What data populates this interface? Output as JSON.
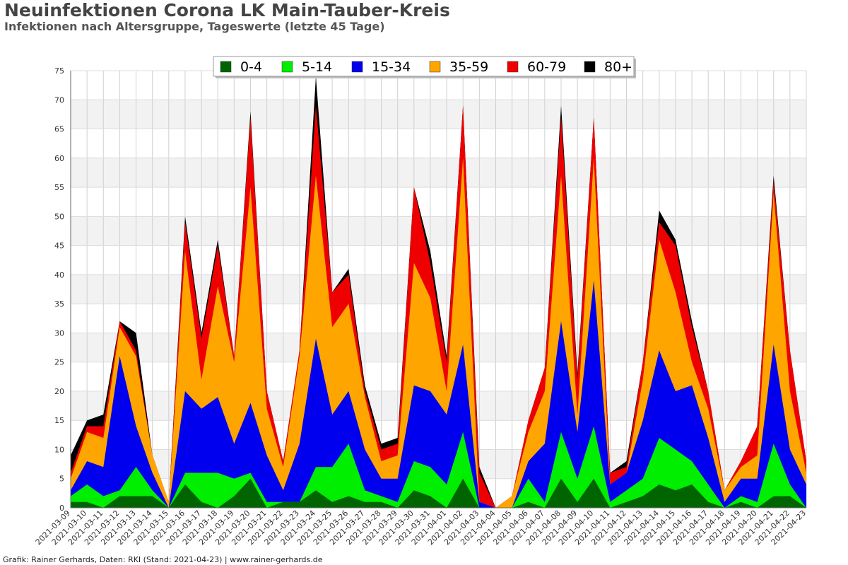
{
  "header": {
    "title": "Neuinfektionen Corona LK Main-Tauber-Kreis",
    "subtitle": "Infektionen nach Altersgruppe, Tageswerte (letzte 45 Tage)"
  },
  "footer": {
    "credit": "Grafik: Rainer Gerhards, Daten: RKI (Stand: 2021-04-23) | www.rainer-gerhards.de"
  },
  "chart_data": {
    "type": "area",
    "stacked": true,
    "title": "Neuinfektionen Corona LK Main-Tauber-Kreis",
    "subtitle": "Infektionen nach Altersgruppe, Tageswerte (letzte 45 Tage)",
    "xlabel": "",
    "ylabel": "",
    "ylim": [
      0,
      75
    ],
    "yticks": [
      0,
      5,
      10,
      15,
      20,
      25,
      30,
      35,
      40,
      45,
      50,
      55,
      60,
      65,
      70,
      75
    ],
    "grid": true,
    "legend_position": "top-center",
    "x": [
      "2021-03-09",
      "2021-03-10",
      "2021-03-11",
      "2021-03-12",
      "2021-03-13",
      "2021-03-14",
      "2021-03-15",
      "2021-03-16",
      "2021-03-17",
      "2021-03-18",
      "2021-03-19",
      "2021-03-20",
      "2021-03-21",
      "2021-03-22",
      "2021-03-23",
      "2021-03-24",
      "2021-03-25",
      "2021-03-26",
      "2021-03-27",
      "2021-03-28",
      "2021-03-29",
      "2021-03-30",
      "2021-03-31",
      "2021-04-01",
      "2021-04-02",
      "2021-04-03",
      "2021-04-04",
      "2021-04-05",
      "2021-04-06",
      "2021-04-07",
      "2021-04-08",
      "2021-04-09",
      "2021-04-10",
      "2021-04-11",
      "2021-04-12",
      "2021-04-13",
      "2021-04-14",
      "2021-04-15",
      "2021-04-16",
      "2021-04-17",
      "2021-04-18",
      "2021-04-19",
      "2021-04-20",
      "2021-04-21",
      "2021-04-22",
      "2021-04-23"
    ],
    "series": [
      {
        "name": "0-4",
        "color": "#006400",
        "values": [
          1,
          1,
          0,
          2,
          2,
          2,
          0,
          4,
          1,
          0,
          2,
          5,
          0,
          1,
          1,
          3,
          1,
          2,
          1,
          1,
          0,
          3,
          2,
          0,
          5,
          0,
          0,
          0,
          1,
          0,
          5,
          1,
          5,
          0,
          1,
          2,
          4,
          3,
          4,
          1,
          0,
          1,
          0,
          2,
          2,
          0
        ]
      },
      {
        "name": "5-14",
        "color": "#00ee00",
        "values": [
          1,
          3,
          2,
          1,
          5,
          1,
          0,
          2,
          5,
          6,
          3,
          1,
          1,
          0,
          0,
          4,
          6,
          9,
          2,
          1,
          1,
          5,
          5,
          4,
          8,
          0,
          0,
          0,
          4,
          1,
          8,
          4,
          9,
          1,
          2,
          3,
          8,
          7,
          4,
          3,
          0,
          1,
          1,
          9,
          2,
          0
        ]
      },
      {
        "name": "15-34",
        "color": "#0000ee",
        "values": [
          1,
          4,
          5,
          23,
          7,
          3,
          0,
          14,
          11,
          13,
          6,
          12,
          8,
          2,
          10,
          22,
          9,
          9,
          7,
          3,
          4,
          13,
          13,
          12,
          15,
          1,
          0,
          0,
          3,
          10,
          19,
          8,
          25,
          3,
          3,
          10,
          15,
          10,
          13,
          8,
          1,
          3,
          4,
          17,
          6,
          4
        ]
      },
      {
        "name": "35-59",
        "color": "#ffa500",
        "values": [
          2,
          5,
          5,
          5,
          12,
          3,
          1,
          24,
          5,
          19,
          14,
          37,
          8,
          4,
          15,
          28,
          15,
          15,
          9,
          3,
          4,
          21,
          16,
          4,
          32,
          0,
          0,
          2,
          5,
          9,
          25,
          3,
          21,
          0,
          0,
          7,
          19,
          17,
          4,
          5,
          2,
          2,
          4,
          26,
          10,
          2
        ]
      },
      {
        "name": "60-79",
        "color": "#ee0000",
        "values": [
          1,
          1,
          2,
          1,
          1,
          0,
          0,
          5,
          7,
          7,
          1,
          12,
          3,
          1,
          1,
          12,
          6,
          5,
          1,
          2,
          2,
          13,
          6,
          5,
          9,
          5,
          0,
          0,
          2,
          4,
          10,
          6,
          7,
          2,
          1,
          3,
          3,
          8,
          6,
          3,
          0,
          1,
          5,
          2,
          7,
          2
        ]
      },
      {
        "name": "80+",
        "color": "#000000",
        "values": [
          3,
          1,
          2,
          0,
          3,
          0,
          0,
          1,
          1,
          1,
          0,
          1,
          0,
          0,
          0,
          5,
          0,
          1,
          1,
          1,
          1,
          0,
          2,
          1,
          0,
          1,
          0,
          0,
          0,
          0,
          2,
          1,
          0,
          0,
          1,
          0,
          2,
          1,
          1,
          0,
          0,
          0,
          0,
          1,
          0,
          0
        ]
      }
    ]
  }
}
